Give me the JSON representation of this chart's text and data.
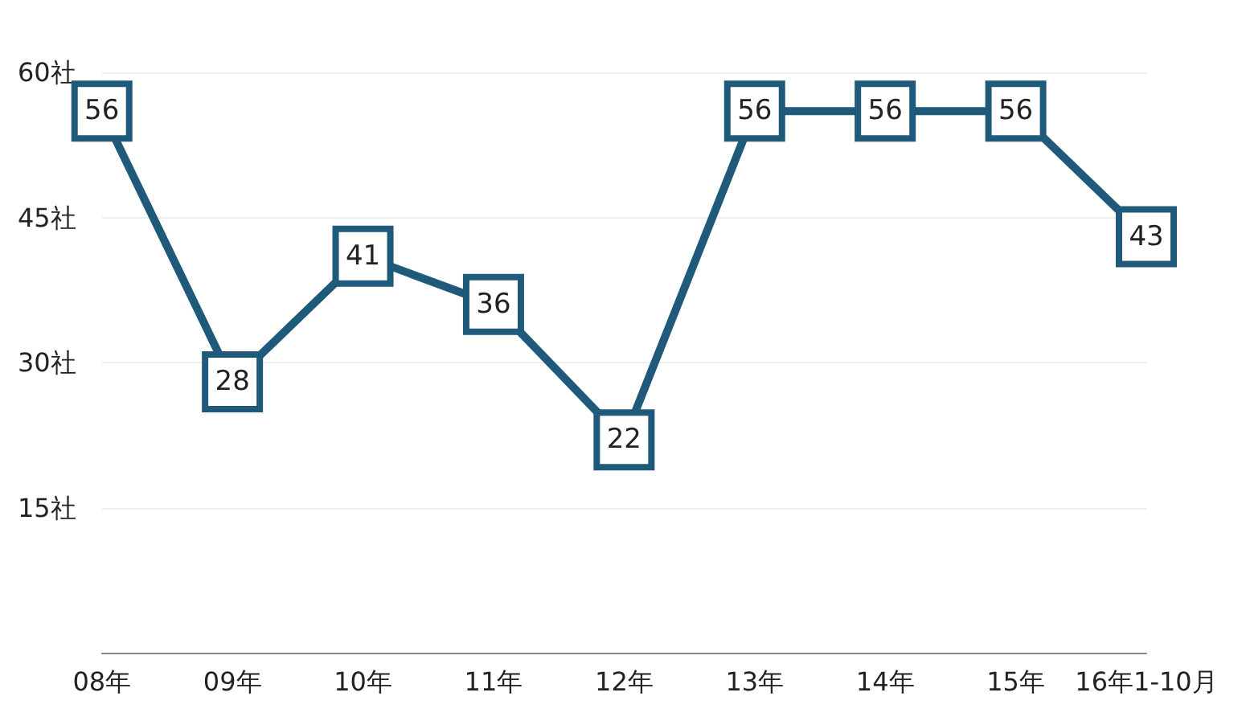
{
  "chart_data": {
    "type": "line",
    "categories": [
      "08年",
      "09年",
      "10年",
      "11年",
      "12年",
      "13年",
      "14年",
      "15年",
      "16年1-10月"
    ],
    "series": [
      {
        "color": "#1f5a7a",
        "values": [
          56,
          28,
          41,
          36,
          22,
          56,
          56,
          56,
          43
        ]
      }
    ],
    "ylim": [
      0,
      60
    ],
    "yticks": [
      {
        "value": 15,
        "label": "15社"
      },
      {
        "value": 30,
        "label": "30社"
      },
      {
        "value": 45,
        "label": "45社"
      },
      {
        "value": 60,
        "label": "60社"
      }
    ],
    "grid": "y",
    "marker": "square",
    "line_style": "solid",
    "data_labels": true
  }
}
